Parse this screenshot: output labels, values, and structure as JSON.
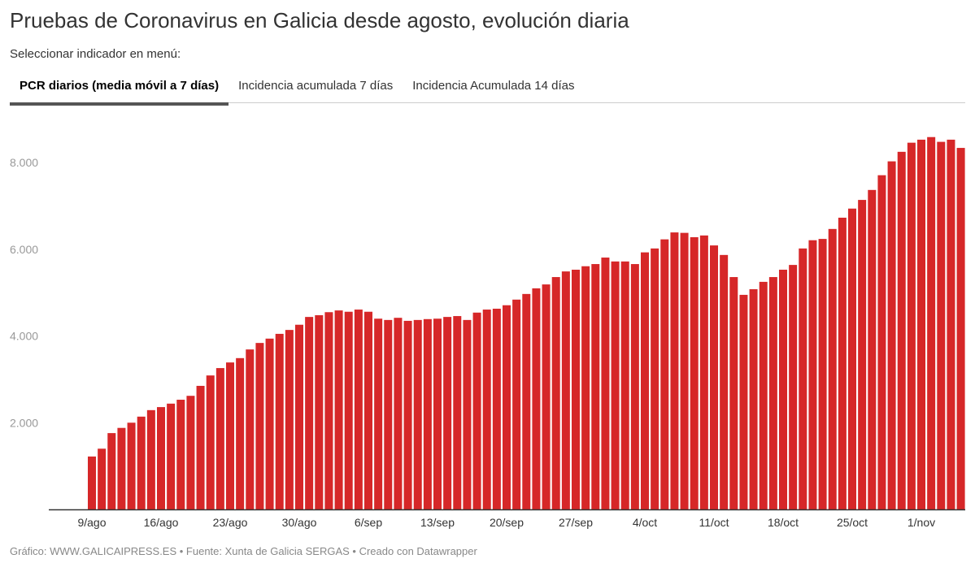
{
  "title": "Pruebas de Coronavirus en Galicia desde agosto, evolución diaria",
  "subtitle": "Seleccionar indicador en menú:",
  "tabs": [
    {
      "label": "PCR diarios (media móvil a 7 días)",
      "active": true
    },
    {
      "label": "Incidencia acumulada 7 días",
      "active": false
    },
    {
      "label": "Incidencia Acumulada 14 días",
      "active": false
    }
  ],
  "footer": "Gráfico: WWW.GALICAIPRESS.ES • Fuente: Xunta de Galicia SERGAS • Creado con Datawrapper",
  "colors": {
    "bar": "#d62728",
    "axis": "#333333",
    "tick_text": "#999999"
  },
  "chart_data": {
    "type": "bar",
    "title": "",
    "xlabel": "",
    "ylabel": "",
    "ylim": [
      0,
      9000
    ],
    "grid": false,
    "y_ticks": [
      {
        "value": 2000,
        "label": "2.000"
      },
      {
        "value": 4000,
        "label": "4.000"
      },
      {
        "value": 6000,
        "label": "6.000"
      },
      {
        "value": 8000,
        "label": "8.000"
      }
    ],
    "x_ticks": [
      "9/ago",
      "16/ago",
      "23/ago",
      "30/ago",
      "6/sep",
      "13/sep",
      "20/sep",
      "27/sep",
      "4/oct",
      "11/oct",
      "18/oct",
      "25/oct",
      "1/nov"
    ],
    "categories": [
      "9/ago",
      "10/ago",
      "11/ago",
      "12/ago",
      "13/ago",
      "14/ago",
      "15/ago",
      "16/ago",
      "17/ago",
      "18/ago",
      "19/ago",
      "20/ago",
      "21/ago",
      "22/ago",
      "23/ago",
      "24/ago",
      "25/ago",
      "26/ago",
      "27/ago",
      "28/ago",
      "29/ago",
      "30/ago",
      "31/ago",
      "1/sep",
      "2/sep",
      "3/sep",
      "4/sep",
      "5/sep",
      "6/sep",
      "7/sep",
      "8/sep",
      "9/sep",
      "10/sep",
      "11/sep",
      "12/sep",
      "13/sep",
      "14/sep",
      "15/sep",
      "16/sep",
      "17/sep",
      "18/sep",
      "19/sep",
      "20/sep",
      "21/sep",
      "22/sep",
      "23/sep",
      "24/sep",
      "25/sep",
      "26/sep",
      "27/sep",
      "28/sep",
      "29/sep",
      "30/sep",
      "1/oct",
      "2/oct",
      "3/oct",
      "4/oct",
      "5/oct",
      "6/oct",
      "7/oct",
      "8/oct",
      "9/oct",
      "10/oct",
      "11/oct",
      "12/oct",
      "13/oct",
      "14/oct",
      "15/oct",
      "16/oct",
      "17/oct",
      "18/oct",
      "19/oct",
      "20/oct",
      "21/oct",
      "22/oct",
      "23/oct",
      "24/oct",
      "25/oct",
      "26/oct",
      "27/oct",
      "28/oct",
      "29/oct",
      "30/oct",
      "31/oct",
      "1/nov",
      "2/nov",
      "3/nov",
      "4/nov",
      "5/nov"
    ],
    "values": [
      1220,
      1400,
      1760,
      1880,
      2000,
      2140,
      2290,
      2360,
      2440,
      2530,
      2620,
      2850,
      3090,
      3260,
      3390,
      3490,
      3690,
      3840,
      3940,
      4050,
      4140,
      4260,
      4440,
      4480,
      4550,
      4590,
      4560,
      4610,
      4560,
      4400,
      4370,
      4420,
      4350,
      4370,
      4390,
      4400,
      4440,
      4460,
      4370,
      4540,
      4610,
      4630,
      4710,
      4840,
      4970,
      5100,
      5190,
      5360,
      5490,
      5530,
      5610,
      5660,
      5810,
      5720,
      5720,
      5660,
      5930,
      6020,
      6230,
      6390,
      6380,
      6280,
      6320,
      6090,
      5870,
      5360,
      4950,
      5080,
      5250,
      5360,
      5530,
      5640,
      6020,
      6210,
      6240,
      6470,
      6730,
      6940,
      7140,
      7370,
      7710,
      8030,
      8250,
      8460,
      8530,
      8590,
      8480,
      8530,
      8340
    ]
  }
}
